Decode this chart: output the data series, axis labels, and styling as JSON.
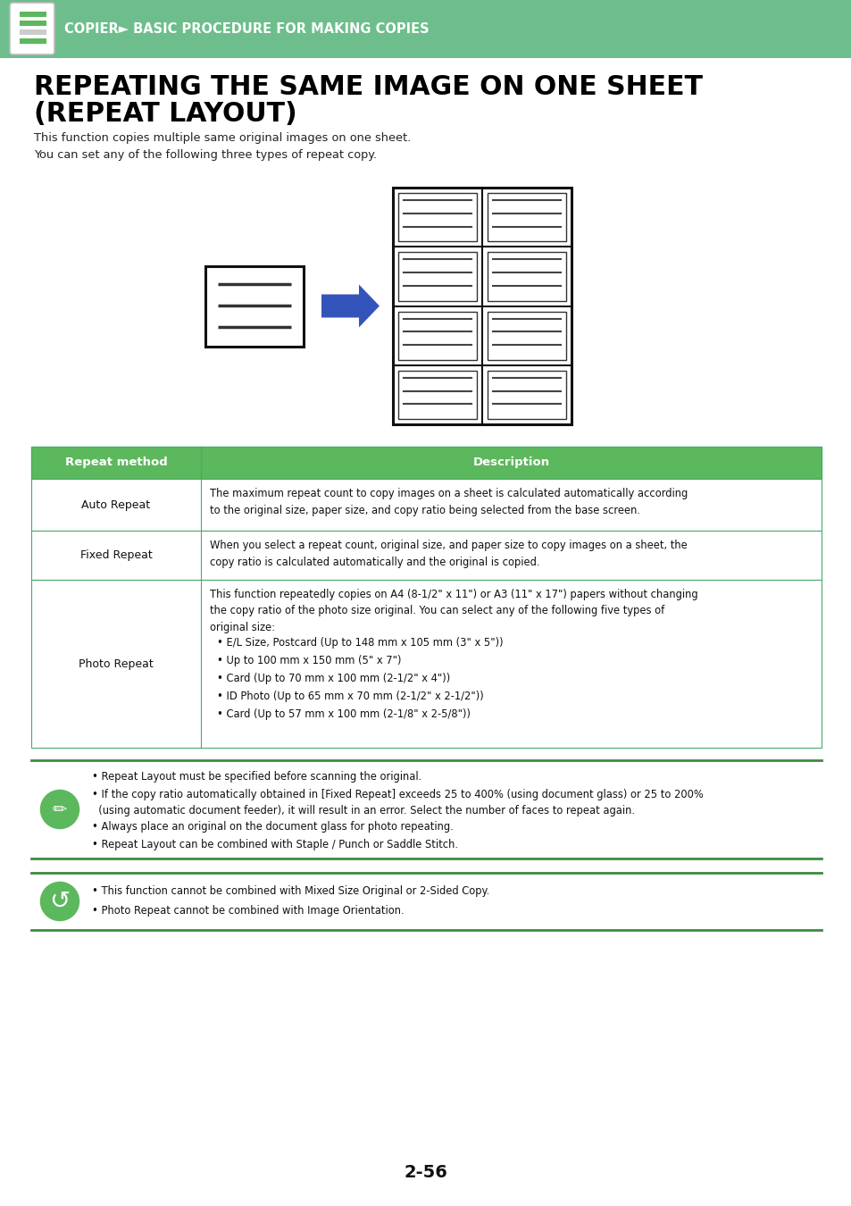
{
  "header_bg": "#6dbe8c",
  "header_text": "COPIER► BASIC PROCEDURE FOR MAKING COPIES",
  "header_text_color": "#ffffff",
  "page_bg": "#ffffff",
  "title_line1": "REPEATING THE SAME IMAGE ON ONE SHEET",
  "title_line2": "(REPEAT LAYOUT)",
  "title_color": "#000000",
  "subtitle_line1": "This function copies multiple same original images on one sheet.",
  "subtitle_line2": "You can set any of the following three types of repeat copy.",
  "table_header_bg": "#5cb85c",
  "table_border_color": "#4aaa6a",
  "table_col1_header": "Repeat method",
  "table_col2_header": "Description",
  "row1_method": "Auto Repeat",
  "row1_desc": "The maximum repeat count to copy images on a sheet is calculated automatically according\nto the original size, paper size, and copy ratio being selected from the base screen.",
  "row2_method": "Fixed Repeat",
  "row2_desc": "When you select a repeat count, original size, and paper size to copy images on a sheet, the\ncopy ratio is calculated automatically and the original is copied.",
  "row3_method": "Photo Repeat",
  "row3_desc_intro": "This function repeatedly copies on A4 (8-1/2\" x 11\") or A3 (11\" x 17\") papers without changing\nthe copy ratio of the photo size original. You can select any of the following five types of\noriginal size:",
  "row3_bullets": [
    "• E/L Size, Postcard (Up to 148 mm x 105 mm (3\" x 5\"))",
    "• Up to 100 mm x 150 mm (5\" x 7\")",
    "• Card (Up to 70 mm x 100 mm (2-1/2\" x 4\"))",
    "• ID Photo (Up to 65 mm x 70 mm (2-1/2\" x 2-1/2\"))",
    "• Card (Up to 57 mm x 100 mm (2-1/8\" x 2-5/8\"))"
  ],
  "note1_bullets": [
    "• Repeat Layout must be specified before scanning the original.",
    "• If the copy ratio automatically obtained in [Fixed Repeat] exceeds 25 to 400% (using document glass) or 25 to 200%\n  (using automatic document feeder), it will result in an error. Select the number of faces to repeat again.",
    "• Always place an original on the document glass for photo repeating.",
    "• Repeat Layout can be combined with Staple / Punch or Saddle Stitch."
  ],
  "note2_bullets": [
    "• This function cannot be combined with Mixed Size Original or 2-Sided Copy.",
    "• Photo Repeat cannot be combined with Image Orientation."
  ],
  "page_number": "2-56",
  "green_color": "#5cb85c",
  "line_color": "#3d8b3d",
  "arrow_color": "#3355bb"
}
